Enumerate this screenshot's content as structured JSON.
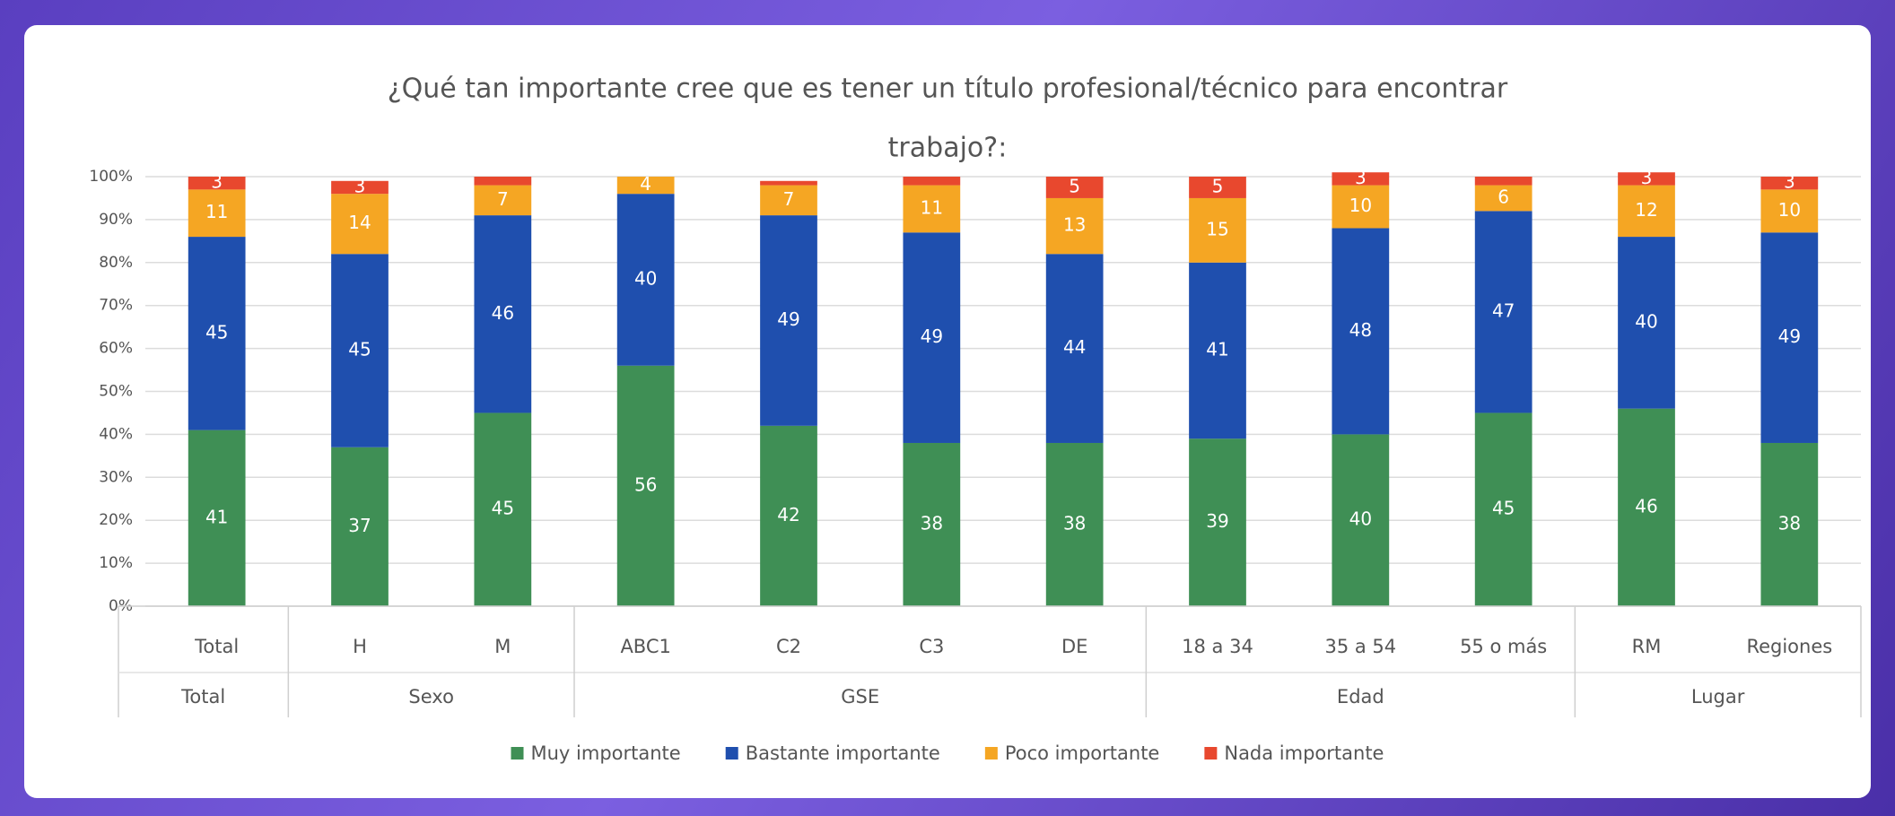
{
  "chart_data": {
    "type": "stacked-bar",
    "title": [
      "¿Qué tan importante cree que es tener un título profesional/técnico para encontrar",
      "trabajo?:"
    ],
    "categories": [
      "Total",
      "H",
      "M",
      "ABC1",
      "C2",
      "C3",
      "DE",
      "18 a 34",
      "35 a 54",
      "55 o más",
      "RM",
      "Regiones"
    ],
    "groups": [
      {
        "label": "Total",
        "count": 1
      },
      {
        "label": "Sexo",
        "count": 2
      },
      {
        "label": "GSE",
        "count": 4
      },
      {
        "label": "Edad",
        "count": 3
      },
      {
        "label": "Lugar",
        "count": 2
      }
    ],
    "series": [
      {
        "name": "Muy importante",
        "color": "#3f8f55",
        "values": [
          41,
          37,
          45,
          56,
          42,
          38,
          38,
          39,
          40,
          45,
          46,
          38
        ],
        "value_labels": [
          "41",
          "37",
          "45",
          "56",
          "42",
          "38",
          "38",
          "39",
          "40",
          "45",
          "46",
          "38"
        ]
      },
      {
        "name": "Bastante importante",
        "color": "#1f4fae",
        "values": [
          45,
          45,
          46,
          40,
          49,
          49,
          44,
          41,
          48,
          47,
          40,
          49
        ],
        "value_labels": [
          "45",
          "45",
          "46",
          "40",
          "49",
          "49",
          "44",
          "41",
          "48",
          "47",
          "40",
          "49"
        ]
      },
      {
        "name": "Poco importante",
        "color": "#f5a623",
        "values": [
          11,
          14,
          7,
          4,
          7,
          11,
          13,
          15,
          10,
          6,
          12,
          10
        ],
        "value_labels": [
          "11",
          "14",
          "7",
          "4",
          "7",
          "11",
          "13",
          "15",
          "10",
          "6",
          "12",
          "10"
        ]
      },
      {
        "name": "Nada importante",
        "color": "#e8482e",
        "values": [
          3,
          3,
          2,
          0,
          1,
          2,
          5,
          5,
          3,
          2,
          3,
          3
        ],
        "value_labels": [
          "3",
          "3",
          null,
          null,
          null,
          null,
          "5",
          "5",
          "3",
          null,
          "3",
          "3"
        ]
      }
    ],
    "ylim": [
      0,
      100
    ],
    "yticks": [
      {
        "value": 0,
        "label": "0%"
      },
      {
        "value": 10,
        "label": "10%"
      },
      {
        "value": 20,
        "label": "20%"
      },
      {
        "value": 30,
        "label": "30%"
      },
      {
        "value": 40,
        "label": "40%"
      },
      {
        "value": 50,
        "label": "50%"
      },
      {
        "value": 60,
        "label": "60%"
      },
      {
        "value": 70,
        "label": "70%"
      },
      {
        "value": 80,
        "label": "80%"
      },
      {
        "value": 90,
        "label": "90%"
      },
      {
        "value": 100,
        "label": "100%"
      }
    ],
    "grid": true,
    "legend": "bottom"
  }
}
